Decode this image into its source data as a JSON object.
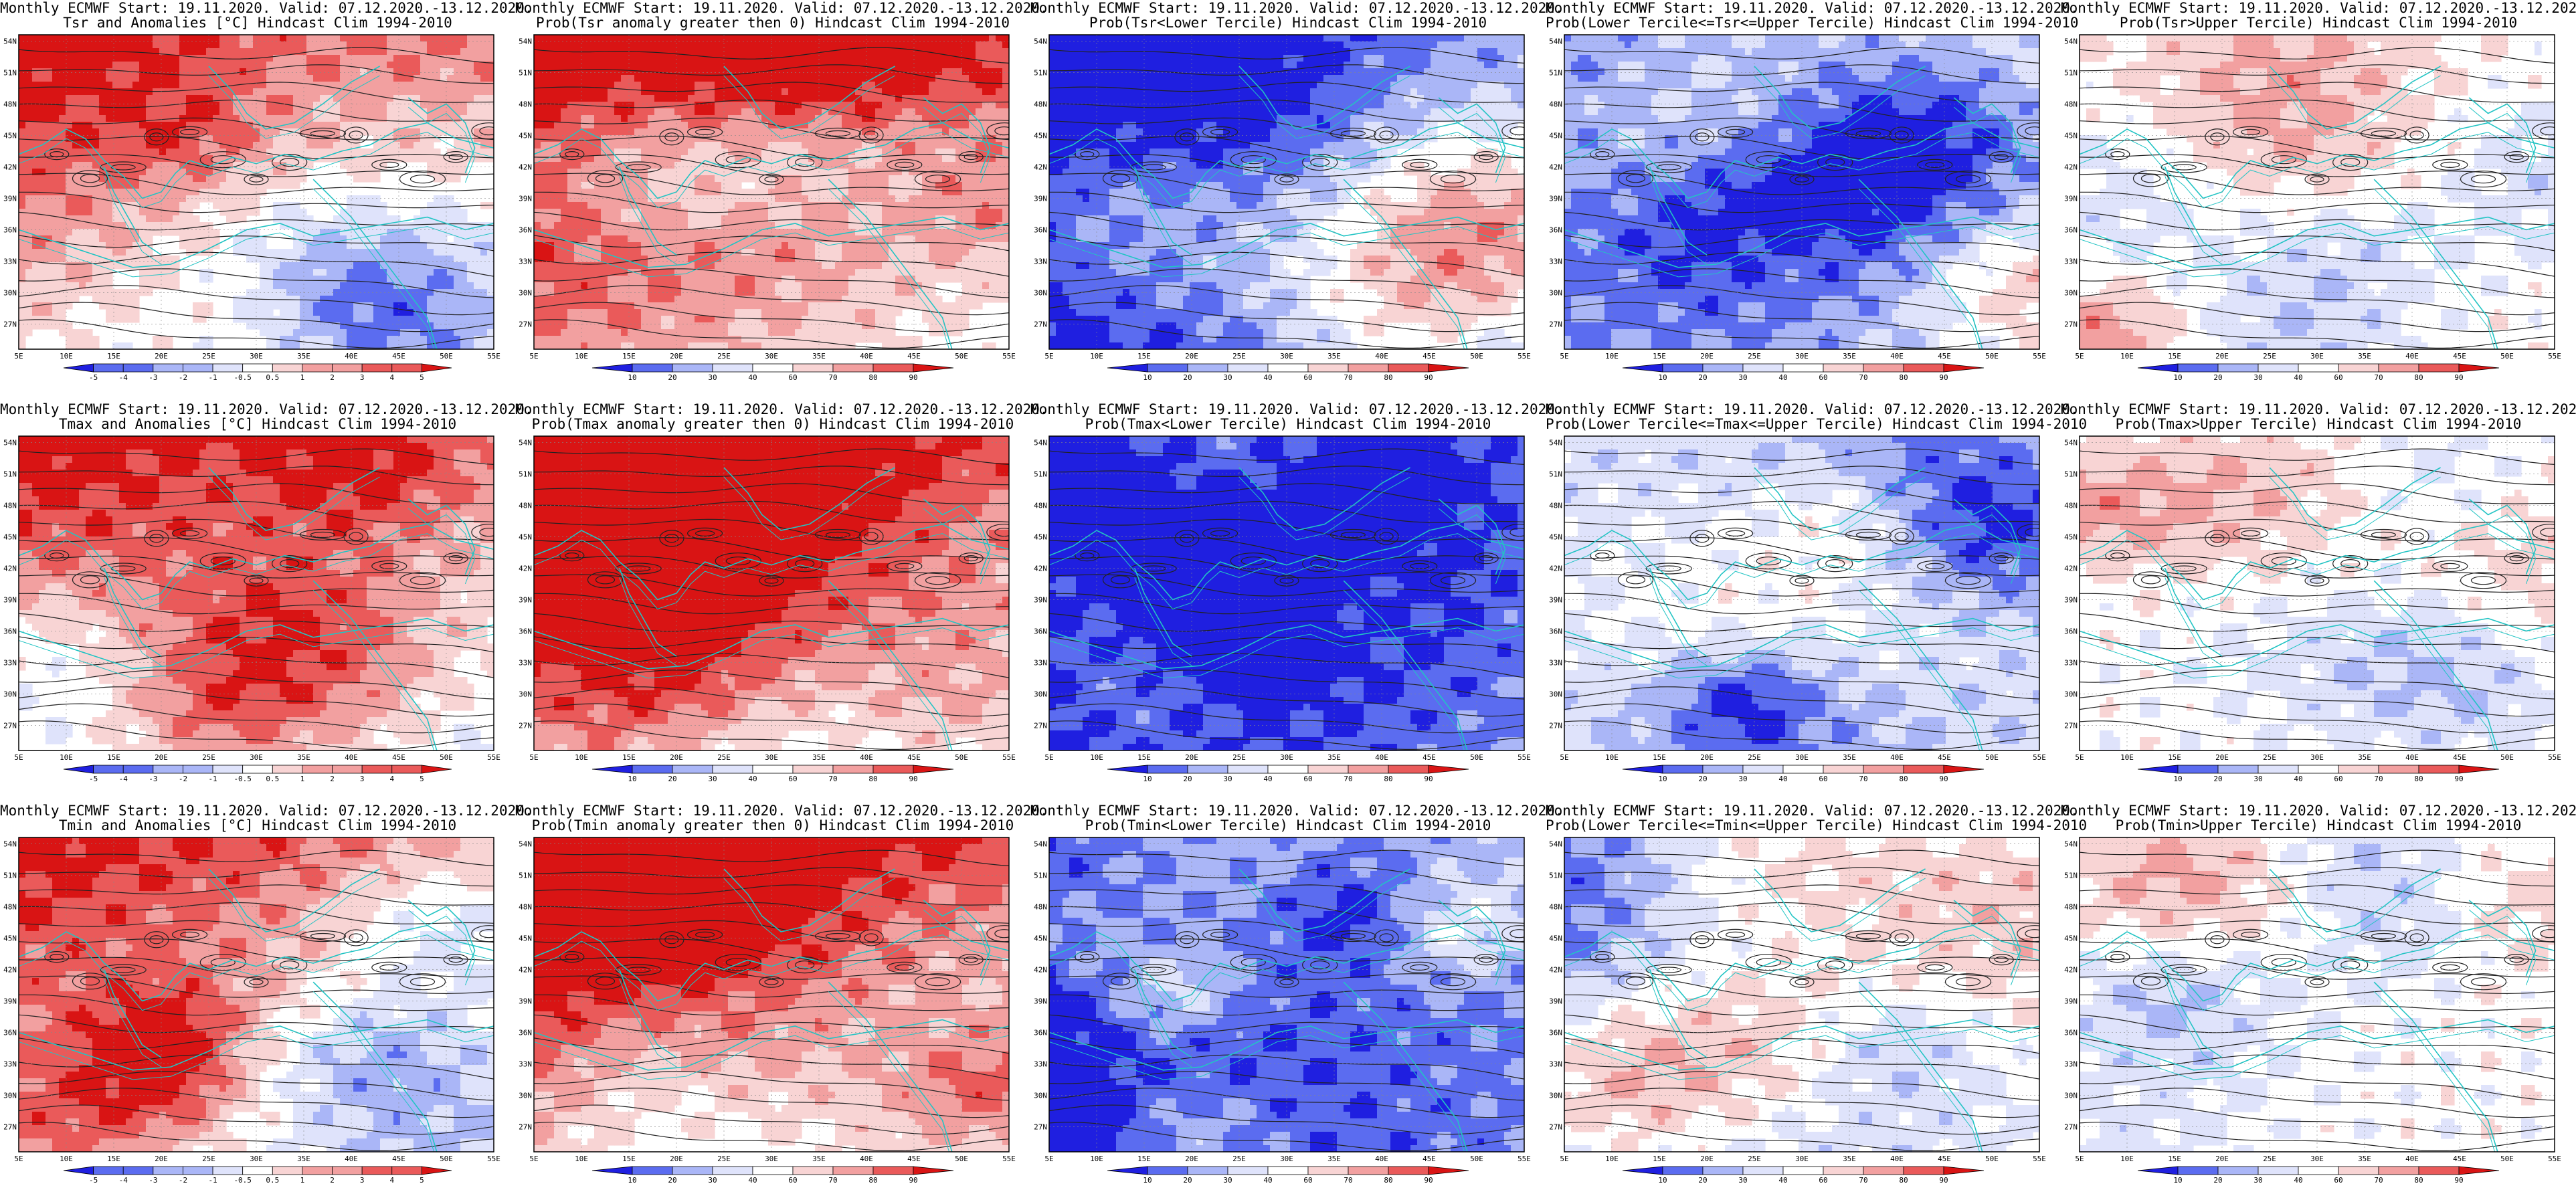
{
  "common": {
    "title_line1": "Monthly ECMWF Start: 19.11.2020. Valid: 07.12.2020.-13.12.2020.",
    "lon_labels": [
      "5E",
      "10E",
      "15E",
      "20E",
      "25E",
      "30E",
      "35E",
      "40E",
      "45E",
      "50E",
      "55E"
    ],
    "lat_labels": [
      "27N",
      "30N",
      "33N",
      "36N",
      "39N",
      "42N",
      "45N",
      "48N",
      "51N",
      "54N"
    ]
  },
  "colorbars": {
    "anomaly": [
      "-5",
      "-4",
      "-3",
      "-2",
      "-1",
      "-0.5",
      "0.5",
      "1",
      "2",
      "3",
      "4",
      "5"
    ],
    "probability": [
      "10",
      "20",
      "30",
      "40",
      "60",
      "70",
      "80",
      "90"
    ]
  },
  "colors": {
    "deep_blue": "#1f1fe0",
    "mid_blue": "#5b6cf0",
    "light_blue": "#aab6f7",
    "pale_blue": "#dfe3fb",
    "white": "#ffffff",
    "pale_red": "#f8d4d4",
    "light_red": "#f2a0a0",
    "mid_red": "#ea5a5a",
    "deep_red": "#d91414",
    "coast": "#22c4c4",
    "contour": "#222222"
  },
  "panels": [
    {
      "id": "tsr-anom",
      "row": 0,
      "col": 0,
      "title2": "Tsr and Anomalies [°C] Hindcast Clim 1994-2010",
      "scale": "anomaly",
      "bias": 0.55
    },
    {
      "id": "tsr-prob-pos",
      "row": 0,
      "col": 1,
      "title2": "Prob(Tsr anomaly greater then 0) Hindcast Clim 1994-2010",
      "scale": "probability",
      "bias": 0.8
    },
    {
      "id": "tsr-lower",
      "row": 0,
      "col": 2,
      "title2": "Prob(Tsr<Lower Tercile) Hindcast Clim 1994-2010",
      "scale": "probability",
      "bias": -0.85
    },
    {
      "id": "tsr-middle",
      "row": 0,
      "col": 3,
      "title2": "Prob(Lower Tercile<=Tsr<=Upper Tercile) Hindcast Clim 1994-2010",
      "scale": "probability",
      "bias": -0.35
    },
    {
      "id": "tsr-upper",
      "row": 0,
      "col": 4,
      "title2": "Prob(Tsr>Upper Tercile) Hindcast Clim 1994-2010",
      "scale": "probability",
      "bias": 0.05
    },
    {
      "id": "tmax-anom",
      "row": 1,
      "col": 0,
      "title2": "Tmax and Anomalies [°C] Hindcast Clim 1994-2010",
      "scale": "anomaly",
      "bias": 0.5
    },
    {
      "id": "tmax-prob-pos",
      "row": 1,
      "col": 1,
      "title2": "Prob(Tmax anomaly greater then 0) Hindcast Clim 1994-2010",
      "scale": "probability",
      "bias": 0.75
    },
    {
      "id": "tmax-lower",
      "row": 1,
      "col": 2,
      "title2": "Prob(Tmax<Lower Tercile) Hindcast Clim 1994-2010",
      "scale": "probability",
      "bias": -0.8
    },
    {
      "id": "tmax-middle",
      "row": 1,
      "col": 3,
      "title2": "Prob(Lower Tercile<=Tmax<=Upper Tercile) Hindcast Clim 1994-2010",
      "scale": "probability",
      "bias": -0.3
    },
    {
      "id": "tmax-upper",
      "row": 1,
      "col": 4,
      "title2": "Prob(Tmax>Upper Tercile) Hindcast Clim 1994-2010",
      "scale": "probability",
      "bias": 0.0
    },
    {
      "id": "tmin-anom",
      "row": 2,
      "col": 0,
      "title2": "Tmin and Anomalies [°C] Hindcast Clim 1994-2010",
      "scale": "anomaly",
      "bias": 0.5
    },
    {
      "id": "tmin-prob-pos",
      "row": 2,
      "col": 1,
      "title2": "Prob(Tmin anomaly greater then 0) Hindcast Clim 1994-2010",
      "scale": "probability",
      "bias": 0.8
    },
    {
      "id": "tmin-lower",
      "row": 2,
      "col": 2,
      "title2": "Prob(Tmin<Lower Tercile) Hindcast Clim 1994-2010",
      "scale": "probability",
      "bias": -0.85
    },
    {
      "id": "tmin-middle",
      "row": 2,
      "col": 3,
      "title2": "Prob(Lower Tercile<=Tmin<=Upper Tercile) Hindcast Clim 1994-2010",
      "scale": "probability",
      "bias": -0.35
    },
    {
      "id": "tmin-upper",
      "row": 2,
      "col": 4,
      "title2": "Prob(Tmin>Upper Tercile) Hindcast Clim 1994-2010",
      "scale": "probability",
      "bias": 0.0
    }
  ]
}
